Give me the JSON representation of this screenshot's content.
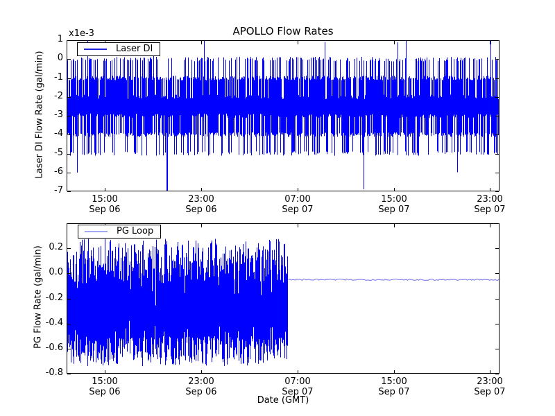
{
  "figure": {
    "background": "#ffffff",
    "frame_color": "#000000",
    "data_line_color": "#0000ff"
  },
  "chart_data": [
    {
      "type": "line",
      "title": "APOLLO Flow Rates",
      "ylabel": "Laser DI Flow Rate (gal/min)",
      "y_offset_label": "x1e-3",
      "series": [
        {
          "name": "Laser DI",
          "color": "#0000ff",
          "legend_line_color": "#2222dd"
        }
      ],
      "legend_position": "upper left",
      "ylim_scaled": [
        -7,
        1
      ],
      "y_unit_multiplier": "1e-3",
      "yticks": {
        "values": [
          1,
          0,
          -1,
          -2,
          -3,
          -4,
          -5,
          -6,
          -7
        ],
        "labels": [
          "1",
          "0",
          "-1",
          "-2",
          "-3",
          "-4",
          "-5",
          "-6",
          "-7"
        ]
      },
      "xticks": [
        {
          "time": "15:00",
          "date": "Sep 06",
          "frac": 0.088
        },
        {
          "time": "23:00",
          "date": "Sep 06",
          "frac": 0.311
        },
        {
          "time": "07:00",
          "date": "Sep 07",
          "frac": 0.534
        },
        {
          "time": "15:00",
          "date": "Sep 07",
          "frac": 0.756
        },
        {
          "time": "23:00",
          "date": "Sep 07",
          "frac": 0.978
        }
      ],
      "signal": {
        "kind": "quantized-noise",
        "seed": 42,
        "levels_scaled": [
          1,
          0,
          -1,
          -2,
          -3,
          -4,
          -5,
          -6,
          -7
        ],
        "core_band_scaled": [
          -3,
          -2
        ],
        "top_level_probs": {
          "1": 0.015,
          "0": 0.315,
          "-1": 0.49,
          "-2": 0.18
        },
        "bottom_level_probs": {
          "-7": 0.003,
          "-6": 0.015,
          "-5": 0.232,
          "-4": 0.53,
          "-3": 0.22
        },
        "deep_spike_frac": 0.687,
        "deep_spike_value_scaled": -7,
        "jitter_scaled": 0.12
      }
    },
    {
      "type": "line",
      "ylabel": "PG Flow Rate (gal/min)",
      "xlabel": "Date (GMT)",
      "series": [
        {
          "name": "PG Loop",
          "color": "#0000ff",
          "legend_line_color": "#a0a8ee"
        }
      ],
      "legend_position": "upper left",
      "ylim": [
        -0.8,
        0.4
      ],
      "yticks": {
        "values": [
          0.2,
          0.0,
          -0.2,
          -0.4,
          -0.6,
          -0.8
        ],
        "labels": [
          "0.2",
          "0.0",
          "-0.2",
          "-0.4",
          "-0.6",
          "-0.8"
        ]
      },
      "xticks": [
        {
          "time": "15:00",
          "date": "Sep 06",
          "frac": 0.088
        },
        {
          "time": "23:00",
          "date": "Sep 06",
          "frac": 0.311
        },
        {
          "time": "07:00",
          "date": "Sep 07",
          "frac": 0.534
        },
        {
          "time": "15:00",
          "date": "Sep 07",
          "frac": 0.756
        },
        {
          "time": "23:00",
          "date": "Sep 07",
          "frac": 0.978
        }
      ],
      "signal": {
        "kind": "noise-then-flat",
        "seed": 7,
        "noise_until_frac": 0.511,
        "noise_top_range": [
          -0.08,
          0.28
        ],
        "noise_bottom_range": [
          -0.74,
          -0.5
        ],
        "noise_dropout_prob": 0.18,
        "flat_value": -0.05,
        "flat_jitter": 0.012,
        "flat_line_color": "#6b6bee"
      }
    }
  ]
}
